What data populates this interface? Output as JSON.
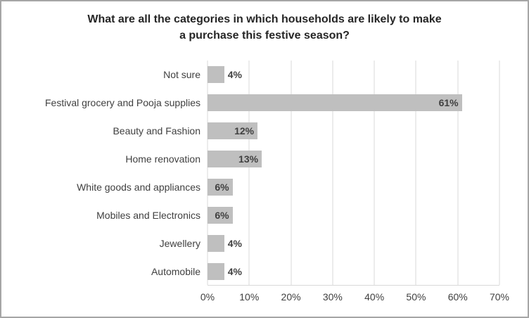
{
  "frame": {
    "border_color": "#a6a6a6",
    "background": "#ffffff"
  },
  "chart_data": {
    "type": "bar",
    "orientation": "horizontal",
    "title": "What are all the categories in which households are likely to make a purchase this festive season?",
    "title_lines": [
      "What are all the categories in which households are likely to make",
      "a purchase this festive season?"
    ],
    "categories": [
      "Not sure",
      "Festival grocery and Pooja supplies",
      "Beauty and Fashion",
      "Home renovation",
      "White goods and appliances",
      "Mobiles and Electronics",
      "Jewellery",
      "Automobile"
    ],
    "values": [
      4,
      61,
      12,
      13,
      6,
      6,
      4,
      4
    ],
    "data_labels": [
      "4%",
      "61%",
      "12%",
      "13%",
      "6%",
      "6%",
      "4%",
      "4%"
    ],
    "xlim": [
      0,
      70
    ],
    "x_ticks": [
      0,
      10,
      20,
      30,
      40,
      50,
      60,
      70
    ],
    "x_tick_labels": [
      "0%",
      "10%",
      "20%",
      "30%",
      "40%",
      "50%",
      "60%",
      "70%"
    ],
    "grid": true,
    "legend": "none",
    "bar_color": "#bfbfbf",
    "gridline_color": "#d9d9d9",
    "label_color": "#404040"
  }
}
